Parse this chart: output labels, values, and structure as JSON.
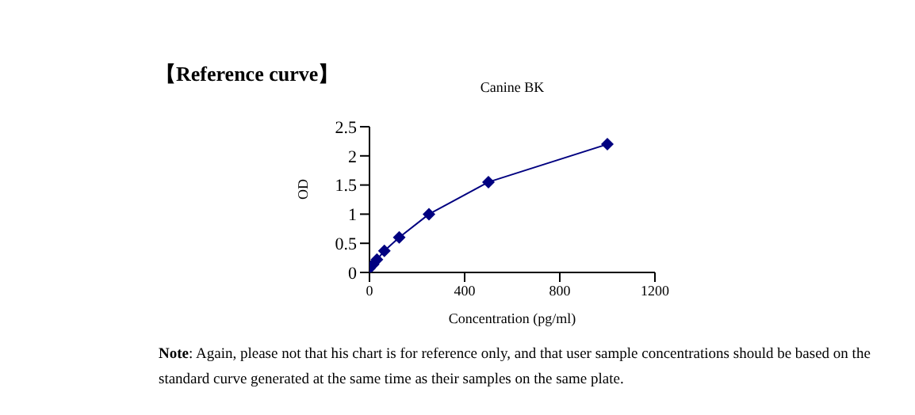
{
  "chart_data": {
    "type": "line",
    "title": "Canine BK",
    "xlabel": "Concentration (pg/ml)",
    "ylabel": "OD",
    "x": [
      0,
      15.6,
      31.25,
      62.5,
      125,
      250,
      500,
      1000
    ],
    "series": [
      {
        "color": "#000080",
        "values": [
          0.07,
          0.14,
          0.22,
          0.37,
          0.6,
          1.0,
          1.55,
          2.2
        ]
      }
    ],
    "xlim": [
      0,
      1200
    ],
    "xticks": [
      0,
      400,
      800,
      1200
    ],
    "ylim": [
      0,
      2.5
    ],
    "yticks": [
      0,
      0.5,
      1,
      1.5,
      2,
      2.5
    ],
    "marker": "diamond",
    "line_style": "solid",
    "grid": false,
    "legend": false,
    "annotations": [
      "【Reference curve】",
      "Note: Again, please not that his chart is for reference only, and that user sample concentrations should be based on the standard curve generated at the same time as their samples on the same plate."
    ]
  }
}
